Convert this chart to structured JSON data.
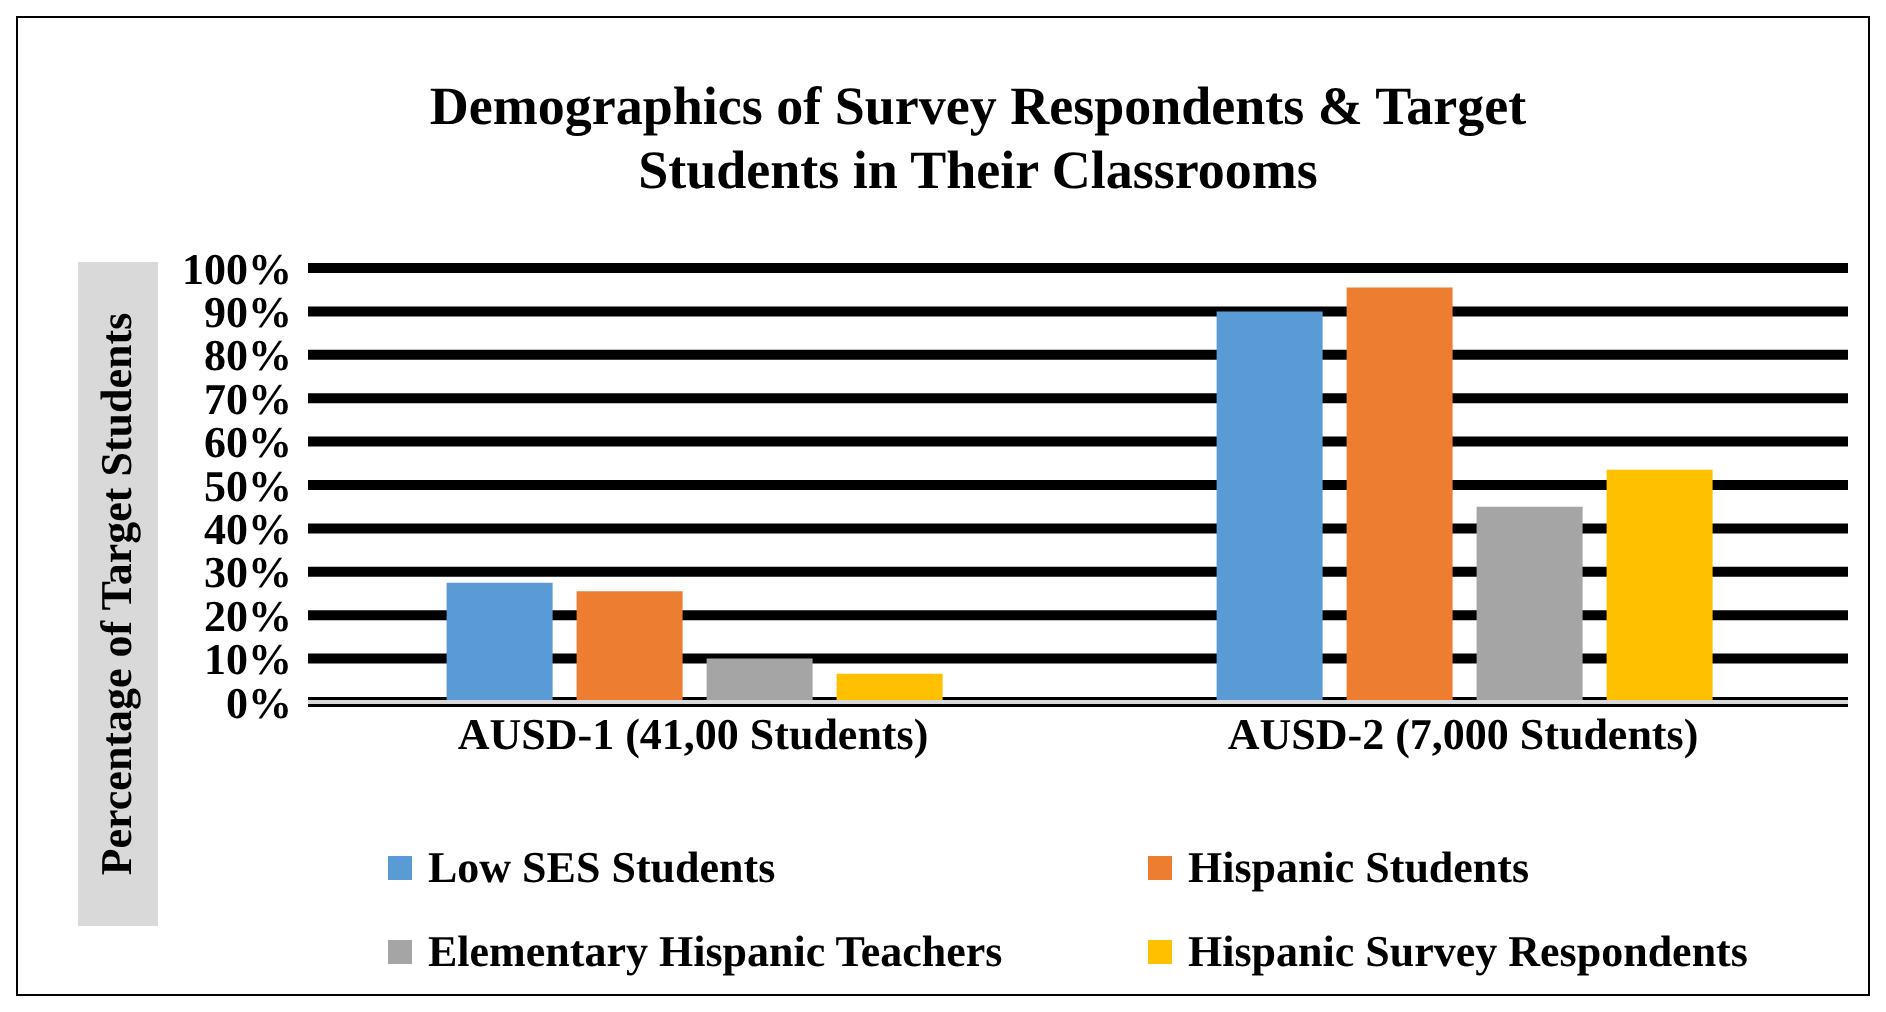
{
  "chart_data": {
    "type": "bar",
    "title": "Demographics of Survey Respondents & Target Students in Their Classrooms",
    "ylabel": "Percentage of Target Students",
    "categories": [
      "AUSD-1 (41,00 Students)",
      "AUSD-2 (7,000 Students)"
    ],
    "series": [
      {
        "name": "Low SES Students",
        "color": "#5b9bd5",
        "values": [
          27.5,
          90
        ]
      },
      {
        "name": "Hispanic Students",
        "color": "#ed7d31",
        "values": [
          25.5,
          95.5
        ]
      },
      {
        "name": "Elementary Hispanic Teachers",
        "color": "#a5a5a5",
        "values": [
          10,
          45
        ]
      },
      {
        "name": "Hispanic Survey Respondents",
        "color": "#ffc000",
        "values": [
          6.5,
          53.5
        ]
      }
    ],
    "ylim": [
      0,
      100
    ],
    "yticks": [
      {
        "value": 0,
        "label": "0%"
      },
      {
        "value": 10,
        "label": "10%"
      },
      {
        "value": 20,
        "label": "20%"
      },
      {
        "value": 30,
        "label": "30%"
      },
      {
        "value": 40,
        "label": "40%"
      },
      {
        "value": 50,
        "label": "50%"
      },
      {
        "value": 60,
        "label": "60%"
      },
      {
        "value": 70,
        "label": "70%"
      },
      {
        "value": 80,
        "label": "80%"
      },
      {
        "value": 90,
        "label": "90%"
      },
      {
        "value": 100,
        "label": "100%"
      }
    ],
    "grid": "y",
    "legend": "bottom"
  }
}
